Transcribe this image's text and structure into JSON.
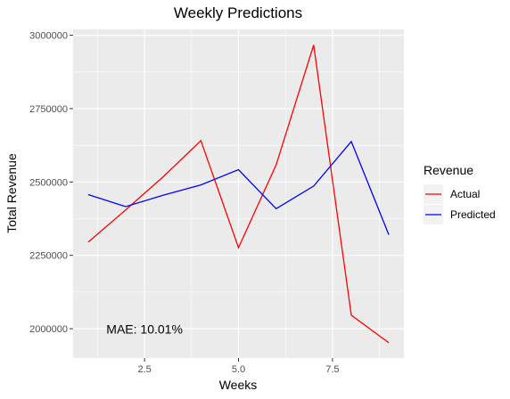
{
  "chart_data": {
    "type": "line",
    "title": "Weekly Predictions",
    "xlabel": "Weeks",
    "ylabel": "Total Revenue",
    "x": [
      1,
      2,
      3,
      4,
      5,
      6,
      7,
      8,
      9
    ],
    "xlim": [
      0.6,
      9.4
    ],
    "ylim": [
      1900000,
      3020000
    ],
    "x_ticks": [
      2.5,
      5.0,
      7.5
    ],
    "x_tick_labels": [
      "2.5",
      "5.0",
      "7.5"
    ],
    "y_ticks": [
      2000000,
      2250000,
      2500000,
      2750000,
      3000000
    ],
    "y_tick_labels": [
      "2000000",
      "2250000",
      "2500000",
      "2750000",
      "3000000"
    ],
    "grid": true,
    "legend": {
      "title": "Revenue",
      "position": "right"
    },
    "series": [
      {
        "name": "Actual",
        "color": "#ff0000",
        "values": [
          2295000,
          2405000,
          2518000,
          2641000,
          2276000,
          2558000,
          2967000,
          2046000,
          1952000
        ]
      },
      {
        "name": "Predicted",
        "color": "#0000ff",
        "values": [
          2457000,
          2416000,
          2455000,
          2490000,
          2542000,
          2409000,
          2486000,
          2638000,
          2320000
        ]
      }
    ],
    "annotations": [
      {
        "text": "MAE: 10.01%",
        "x": 2.5,
        "y": 1998000
      }
    ]
  }
}
